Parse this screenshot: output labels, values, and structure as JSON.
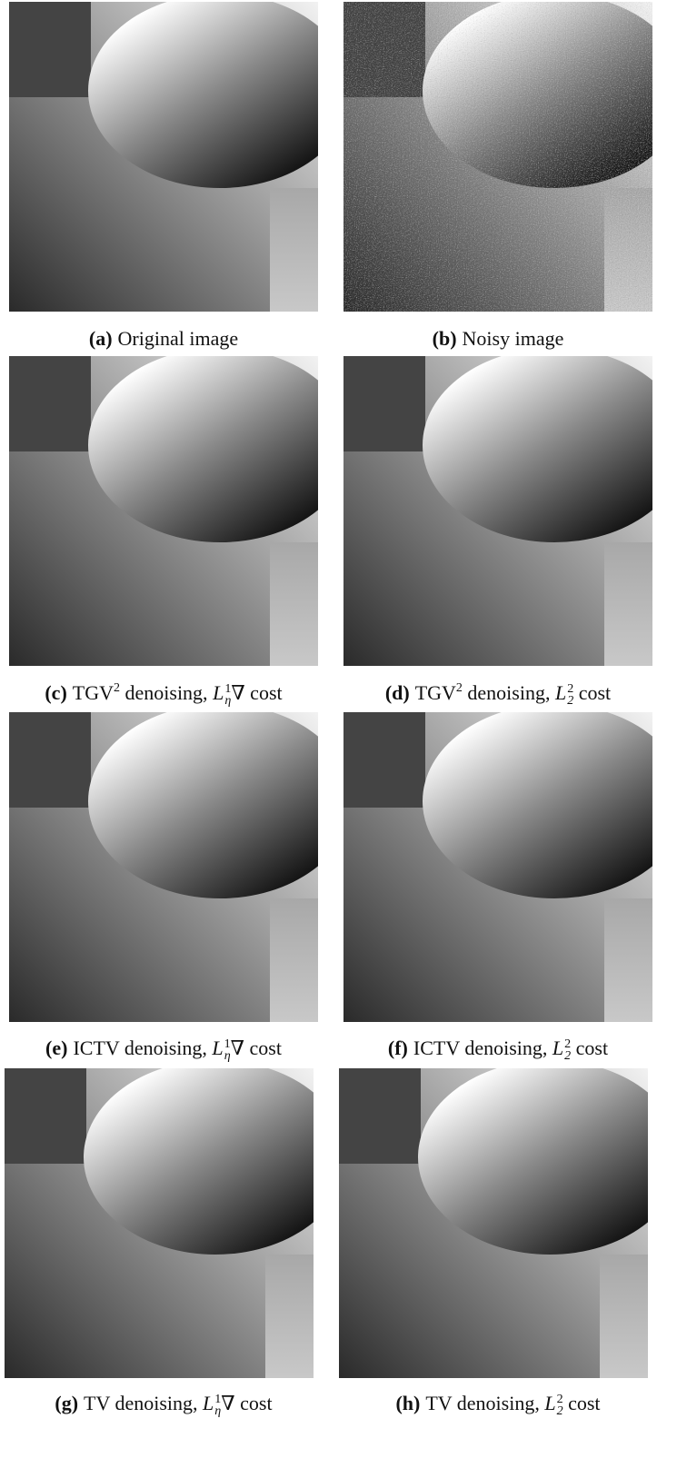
{
  "panels": [
    {
      "label": "(a)",
      "caption": [
        {
          "t": "Original image"
        }
      ]
    },
    {
      "label": "(b)",
      "caption": [
        {
          "t": "Noisy image"
        }
      ]
    },
    {
      "label": "(c)",
      "caption": [
        {
          "t": "TGV",
          "sup": "2"
        },
        {
          "t": " denoising, "
        },
        {
          "t": "L",
          "italic": true,
          "sup": "1",
          "sub": "η"
        },
        {
          "t": "∇ cost"
        }
      ]
    },
    {
      "label": "(d)",
      "caption": [
        {
          "t": "TGV",
          "sup": "2"
        },
        {
          "t": " denoising, "
        },
        {
          "t": "L",
          "italic": true,
          "sup": "2",
          "sub": "2"
        },
        {
          "t": " cost"
        }
      ]
    },
    {
      "label": "(e)",
      "caption": [
        {
          "t": "ICTV denoising, "
        },
        {
          "t": "L",
          "italic": true,
          "sup": "1",
          "sub": "η"
        },
        {
          "t": "∇ cost"
        }
      ]
    },
    {
      "label": "(f)",
      "caption": [
        {
          "t": "ICTV denoising, "
        },
        {
          "t": "L",
          "italic": true,
          "sup": "2",
          "sub": "2"
        },
        {
          "t": " cost"
        }
      ]
    },
    {
      "label": "(g)",
      "caption": [
        {
          "t": "TV denoising, "
        },
        {
          "t": "L",
          "italic": true,
          "sup": "1",
          "sub": "η"
        },
        {
          "t": "∇ cost"
        }
      ]
    },
    {
      "label": "(h)",
      "caption": [
        {
          "t": "TV denoising, "
        },
        {
          "t": "L",
          "italic": true,
          "sup": "2",
          "sub": "2"
        },
        {
          "t": " cost"
        }
      ]
    }
  ]
}
